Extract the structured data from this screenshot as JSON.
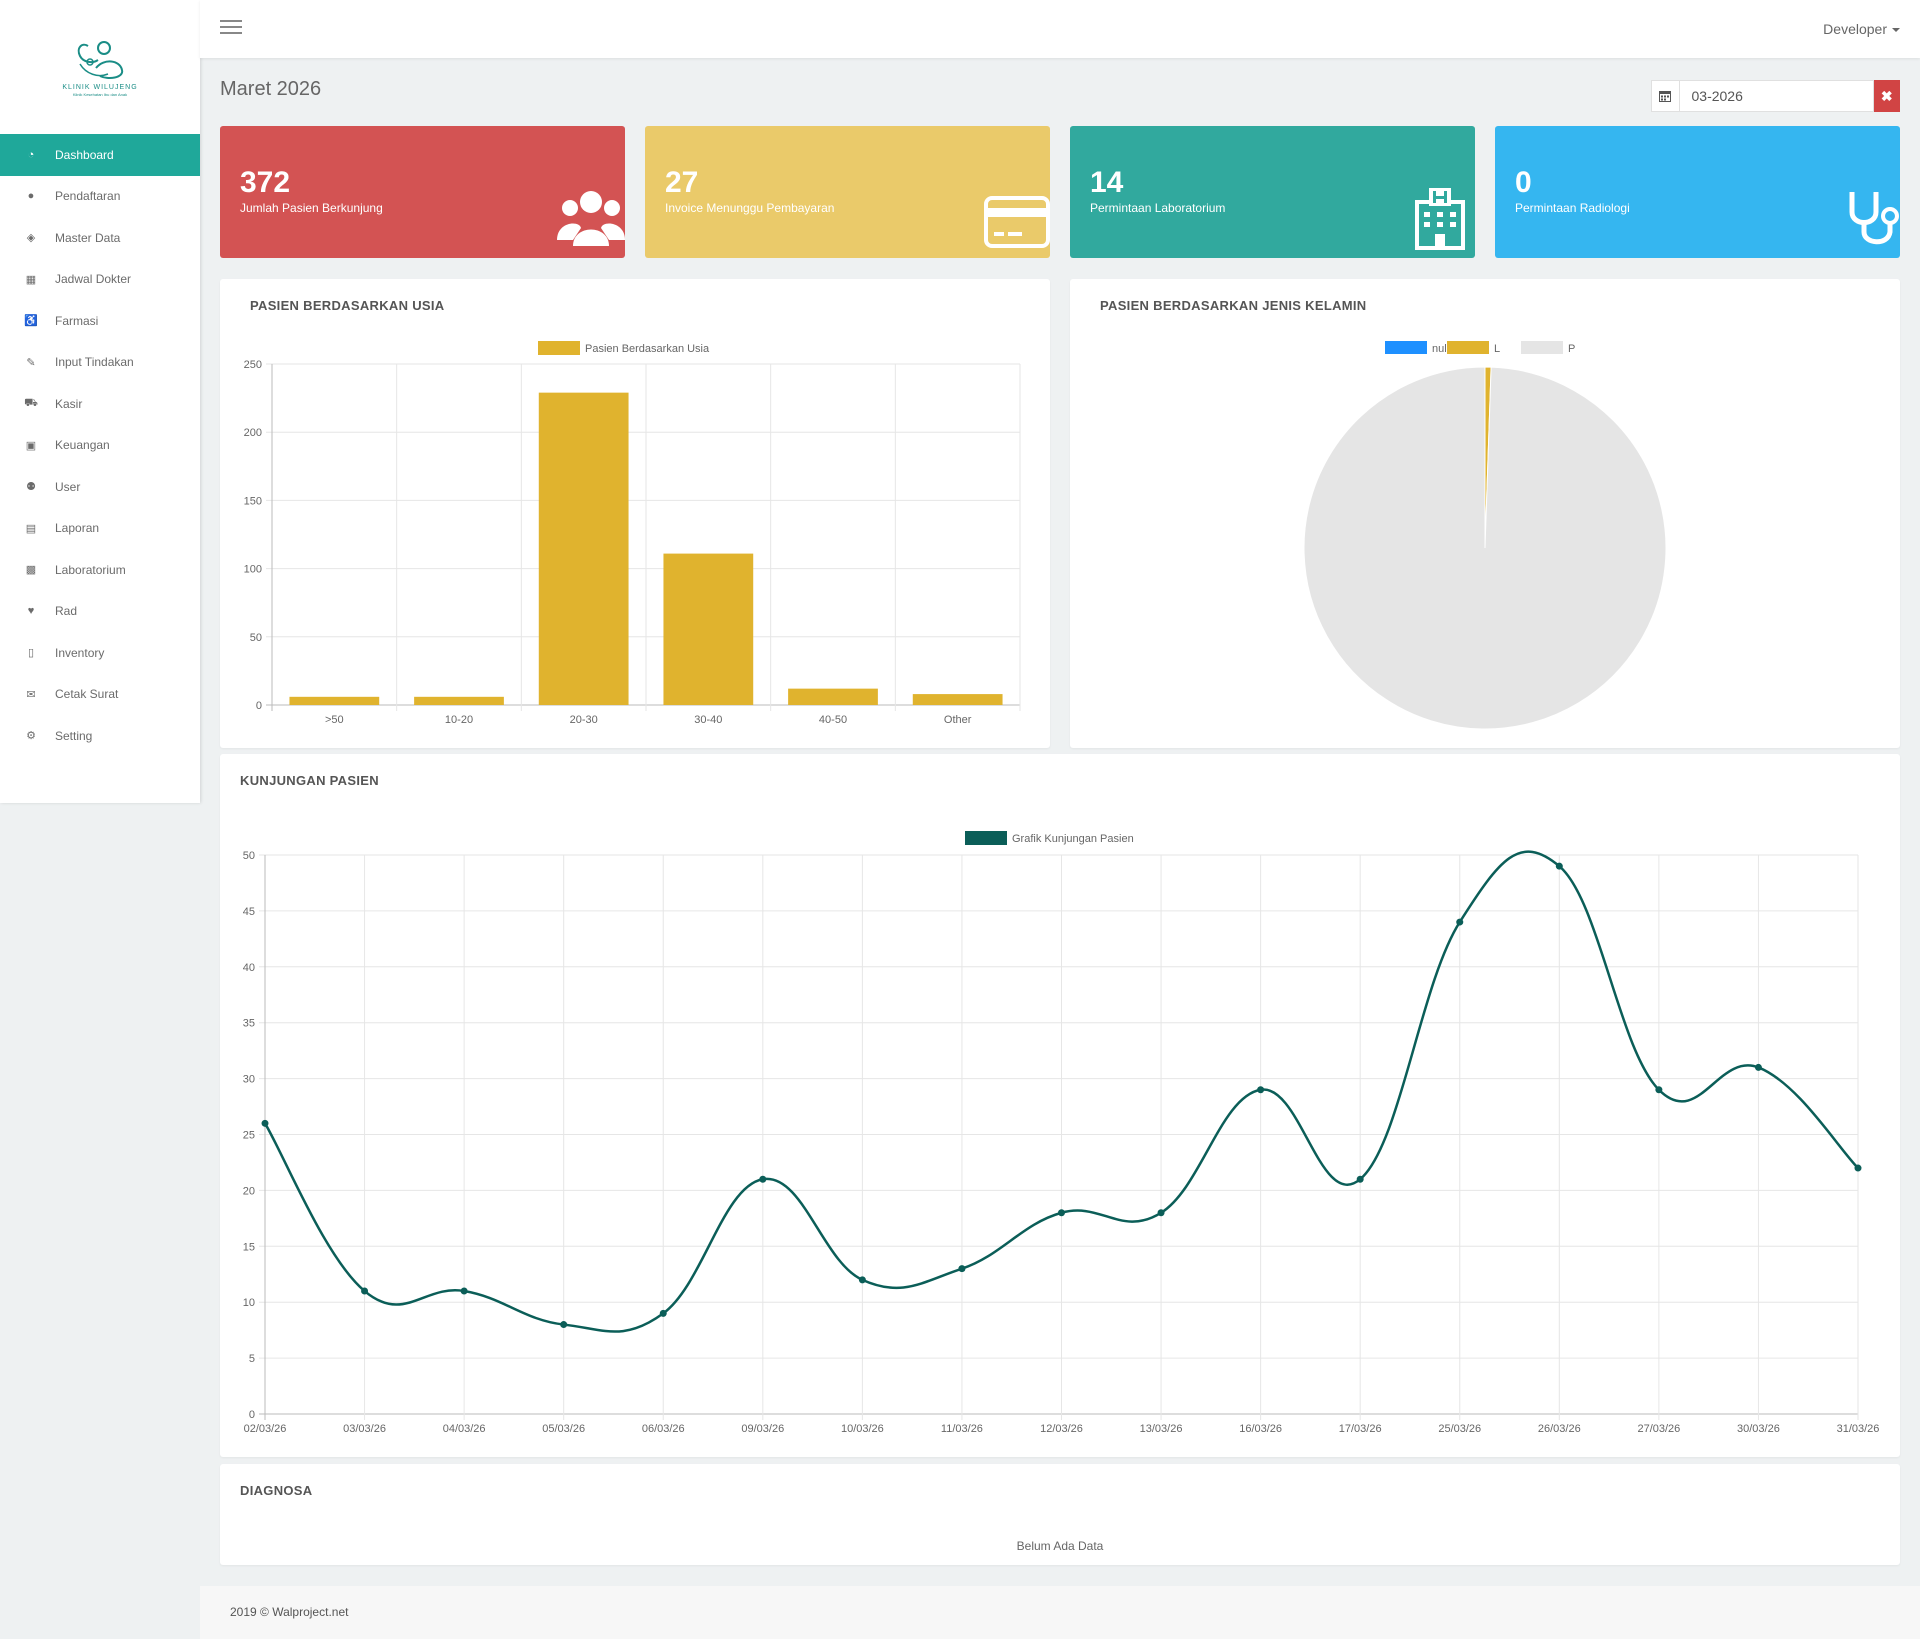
{
  "logo": {
    "name": "KLINIK WILUJENG",
    "tagline": "Klinik Kesehatan Ibu dan Anak"
  },
  "sidebar": {
    "items": [
      {
        "label": "Dashboard",
        "icon": "dashboard-icon",
        "active": true
      },
      {
        "label": "Pendaftaran",
        "icon": "user-icon"
      },
      {
        "label": "Master Data",
        "icon": "cube-icon"
      },
      {
        "label": "Jadwal Dokter",
        "icon": "calendar-icon"
      },
      {
        "label": "Farmasi",
        "icon": "wheelchair-icon"
      },
      {
        "label": "Input Tindakan",
        "icon": "bandage-icon"
      },
      {
        "label": "Kasir",
        "icon": "cart-icon"
      },
      {
        "label": "Keuangan",
        "icon": "money-icon"
      },
      {
        "label": "User",
        "icon": "users-icon"
      },
      {
        "label": "Laporan",
        "icon": "book-icon"
      },
      {
        "label": "Laboratorium",
        "icon": "medkit-icon"
      },
      {
        "label": "Rad",
        "icon": "heartbeat-icon"
      },
      {
        "label": "Inventory",
        "icon": "file-icon"
      },
      {
        "label": "Cetak Surat",
        "icon": "envelope-icon"
      },
      {
        "label": "Setting",
        "icon": "gear-icon"
      }
    ]
  },
  "header": {
    "user": "Developer"
  },
  "page": {
    "title": "Maret 2026",
    "date_value": "03-2026"
  },
  "stats": [
    {
      "value": "372",
      "label": "Jumlah Pasien Berkunjung",
      "color": "#d35353",
      "icon": "users-icon"
    },
    {
      "value": "27",
      "label": "Invoice Menunggu Pembayaran",
      "color": "#eaca6a",
      "icon": "credit-card-icon"
    },
    {
      "value": "14",
      "label": "Permintaan Laboratorium",
      "color": "#31a99e",
      "icon": "hospital-icon"
    },
    {
      "value": "0",
      "label": "Permintaan Radiologi",
      "color": "#35b6f0",
      "icon": "stethoscope-icon"
    }
  ],
  "cards": {
    "age_title": "PASIEN BERDASARKAN USIA",
    "gender_title": "PASIEN BERDASARKAN JENIS KELAMIN",
    "visits_title": "KUNJUNGAN PASIEN",
    "diag_title": "DIAGNOSA",
    "diag_empty": "Belum Ada Data"
  },
  "footer": {
    "text": "2019 © Walproject.net"
  },
  "chart_data": [
    {
      "type": "bar",
      "title": "",
      "series": [
        {
          "name": "Pasien Berdasarkan Usia",
          "values": [
            6,
            6,
            229,
            111,
            12,
            8
          ]
        }
      ],
      "categories": [
        ">50",
        "10-20",
        "20-30",
        "30-40",
        "40-50",
        "Other"
      ],
      "ylim": [
        0,
        250
      ],
      "yticks": [
        0,
        50,
        100,
        150,
        200,
        250
      ],
      "color": "#e0b32e",
      "grid": true,
      "legend": "top"
    },
    {
      "type": "pie",
      "title": "",
      "labels": [
        "null",
        "L",
        "P"
      ],
      "values": [
        0,
        2,
        370
      ],
      "colors": [
        "#1e90ff",
        "#e0b32e",
        "#e5e5e5"
      ],
      "legend": "top"
    },
    {
      "type": "line",
      "title": "",
      "series": [
        {
          "name": "Grafik Kunjungan Pasien",
          "values": [
            26,
            11,
            11,
            8,
            9,
            21,
            12,
            13,
            18,
            18,
            29,
            21,
            44,
            49,
            29,
            31,
            22
          ]
        }
      ],
      "x": [
        "02/03/26",
        "03/03/26",
        "04/03/26",
        "05/03/26",
        "06/03/26",
        "09/03/26",
        "10/03/26",
        "11/03/26",
        "12/03/26",
        "13/03/26",
        "16/03/26",
        "17/03/26",
        "25/03/26",
        "26/03/26",
        "27/03/26",
        "30/03/26",
        "31/03/26"
      ],
      "ylim": [
        0,
        50
      ],
      "yticks": [
        0,
        5,
        10,
        15,
        20,
        25,
        30,
        35,
        40,
        45,
        50
      ],
      "color": "#0b5e58",
      "grid": true,
      "legend": "top"
    }
  ]
}
